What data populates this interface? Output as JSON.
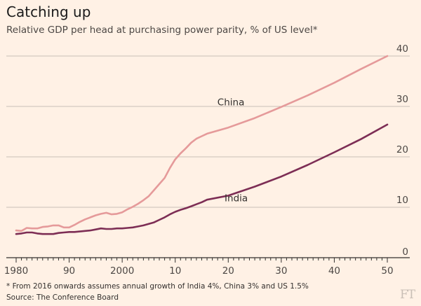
{
  "title": "Catching up",
  "subtitle": "Relative GDP per head at purchasing power parity, % of US level*",
  "footnote": "* From 2016 onwards assumes annual growth of India 4%, China 3% and US 1.5%",
  "source": "Source: The Conference Board",
  "logo": "FT",
  "colors": {
    "china": "#e59a9a",
    "india": "#7d2e55",
    "grid": "#c8c0b8",
    "axis": "#33302e"
  },
  "chart_data": {
    "type": "line",
    "title": "Catching up",
    "subtitle": "Relative GDP per head at purchasing power parity, % of US level*",
    "xlim": [
      1980,
      2050
    ],
    "ylim": [
      0,
      40
    ],
    "yticks": [
      0,
      10,
      20,
      30,
      40
    ],
    "ytick_labels": [
      "0",
      "10",
      "20",
      "30",
      "40"
    ],
    "xticks": [
      1980,
      1990,
      2000,
      2010,
      2020,
      2030,
      2040,
      2050
    ],
    "xtick_labels": [
      "1980",
      "90",
      "2000",
      "10",
      "20",
      "30",
      "40",
      "50"
    ],
    "grid": "horizontal",
    "series": [
      {
        "name": "China",
        "color": "#e59a9a",
        "x": [
          1980,
          1981,
          1982,
          1983,
          1984,
          1985,
          1986,
          1987,
          1988,
          1989,
          1990,
          1991,
          1992,
          1993,
          1994,
          1995,
          1996,
          1997,
          1998,
          1999,
          2000,
          2001,
          2002,
          2003,
          2004,
          2005,
          2006,
          2007,
          2008,
          2009,
          2010,
          2011,
          2012,
          2013,
          2014,
          2015,
          2016,
          2020,
          2025,
          2030,
          2035,
          2040,
          2045,
          2050
        ],
        "y": [
          5.4,
          5.3,
          5.9,
          5.8,
          5.8,
          6.1,
          6.2,
          6.4,
          6.4,
          6.0,
          6.0,
          6.5,
          7.1,
          7.6,
          8.0,
          8.4,
          8.7,
          8.9,
          8.6,
          8.7,
          9.0,
          9.6,
          10.1,
          10.7,
          11.4,
          12.2,
          13.4,
          14.6,
          15.8,
          17.8,
          19.5,
          20.7,
          21.7,
          22.8,
          23.6,
          24.1,
          24.6,
          25.8,
          27.7,
          29.9,
          32.2,
          34.7,
          37.4,
          40.0
        ]
      },
      {
        "name": "India",
        "color": "#7d2e55",
        "x": [
          1980,
          1981,
          1982,
          1983,
          1984,
          1985,
          1986,
          1987,
          1988,
          1989,
          1990,
          1991,
          1992,
          1993,
          1994,
          1995,
          1996,
          1997,
          1998,
          1999,
          2000,
          2001,
          2002,
          2003,
          2004,
          2005,
          2006,
          2007,
          2008,
          2009,
          2010,
          2011,
          2012,
          2013,
          2014,
          2015,
          2016,
          2020,
          2025,
          2030,
          2035,
          2040,
          2045,
          2050
        ],
        "y": [
          4.7,
          4.8,
          5.0,
          5.0,
          4.8,
          4.7,
          4.7,
          4.7,
          4.9,
          5.0,
          5.1,
          5.1,
          5.2,
          5.3,
          5.4,
          5.6,
          5.8,
          5.7,
          5.7,
          5.8,
          5.8,
          5.9,
          6.0,
          6.2,
          6.4,
          6.7,
          7.0,
          7.5,
          8.0,
          8.6,
          9.1,
          9.5,
          9.8,
          10.2,
          10.6,
          11.0,
          11.5,
          12.3,
          14.1,
          16.1,
          18.4,
          20.9,
          23.5,
          26.4
        ]
      }
    ]
  }
}
